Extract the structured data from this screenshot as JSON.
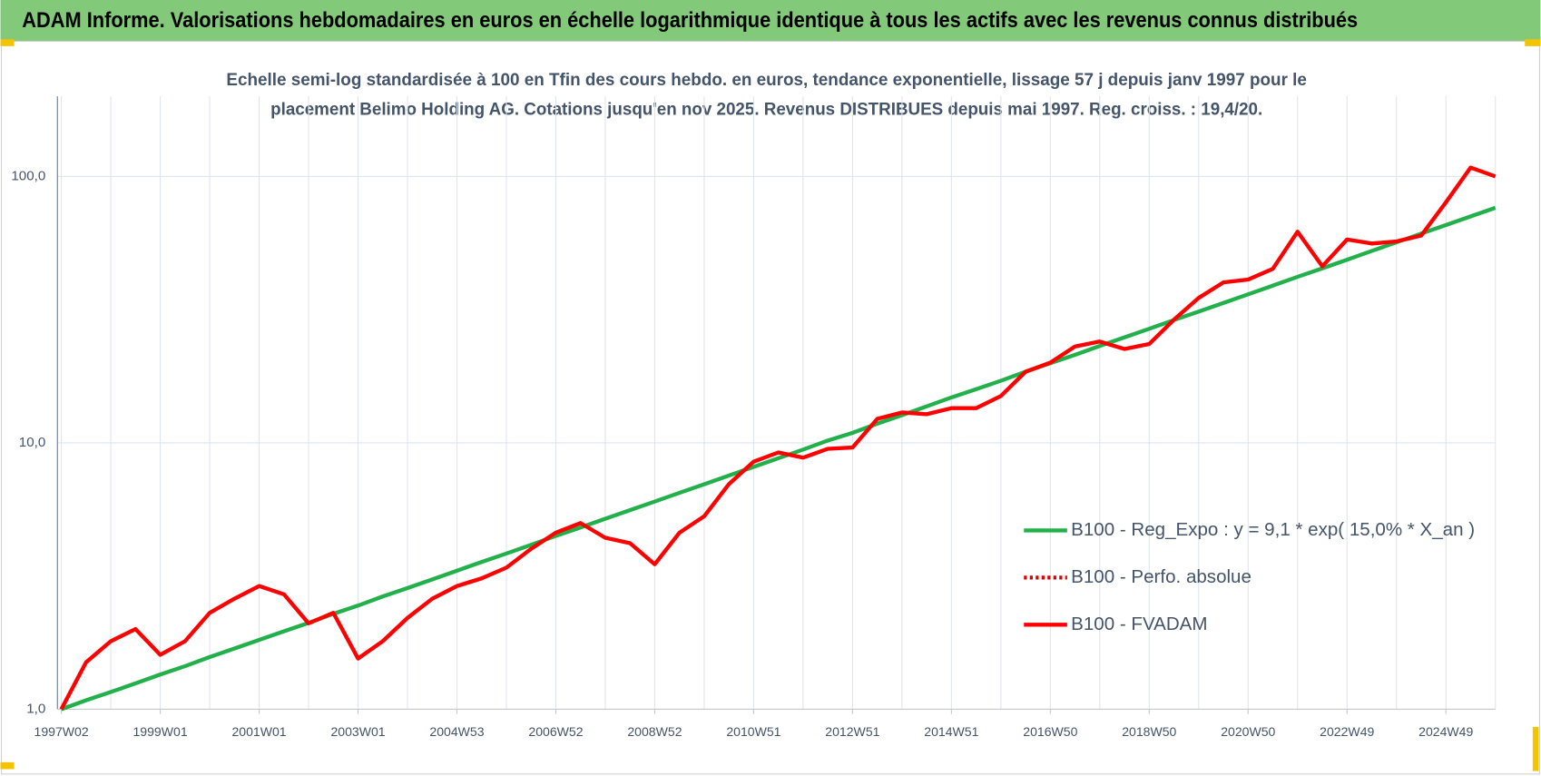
{
  "chart_data": {
    "type": "line",
    "title": "ADAM Informe. Valorisations hebdomadaires en euros en échelle logarithmique identique à tous les actifs avec les revenus connus distribués",
    "subtitle": [
      "Echelle semi-log standardisée à 100 en Tfin des cours hebdo. en euros, tendance exponentielle, lissage 57 j depuis janv 1997 pour le",
      "placement Belimo Holding AG. Cotations jusqu'en nov 2025.  Revenus DISTRIBUES depuis mai 1997. Reg. croiss. : 19,4/20."
    ],
    "categories": [
      "1997W02",
      null,
      null,
      null,
      "1999W01",
      null,
      null,
      null,
      "2001W01",
      null,
      null,
      null,
      "2003W01",
      null,
      null,
      null,
      "2004W53",
      null,
      null,
      null,
      "2006W52",
      null,
      null,
      null,
      "2008W52",
      null,
      null,
      null,
      "2010W51",
      null,
      null,
      null,
      "2012W51",
      null,
      null,
      null,
      "2014W51",
      null,
      null,
      null,
      "2016W50",
      null,
      null,
      null,
      "2018W50",
      null,
      null,
      null,
      "2020W50",
      null,
      null,
      null,
      "2022W49",
      null,
      null,
      null,
      "2024W49",
      null,
      null
    ],
    "log_scale": true,
    "ylim": [
      1,
      200
    ],
    "yticks": [
      {
        "value": 1,
        "label": "1,0"
      },
      {
        "value": 10,
        "label": "10,0"
      },
      {
        "value": 100,
        "label": "100,0"
      }
    ],
    "grid": true,
    "legend": "right",
    "series": [
      {
        "name": "B100 - Reg_Expo : y = 9,1 * exp( 15,0% *  X_an )",
        "color": "#22b04b",
        "style": "solid",
        "values": [
          1.0,
          1.08,
          1.16,
          1.25,
          1.35,
          1.45,
          1.57,
          1.69,
          1.82,
          1.96,
          2.11,
          2.28,
          2.45,
          2.65,
          2.85,
          3.07,
          3.31,
          3.57,
          3.84,
          4.14,
          4.47,
          4.81,
          5.19,
          5.59,
          6.02,
          6.49,
          6.99,
          7.54,
          8.12,
          8.75,
          9.43,
          10.2,
          10.9,
          11.8,
          12.7,
          13.7,
          14.8,
          15.9,
          17.1,
          18.5,
          19.9,
          21.4,
          23.1,
          24.9,
          26.8,
          28.9,
          31.1,
          33.5,
          36.1,
          38.9,
          42.0,
          45.2,
          48.7,
          52.5,
          56.6,
          61.0,
          65.7,
          70.8,
          76.3
        ]
      },
      {
        "name": "B100 - Perfo. absolue",
        "color": "#e00000",
        "style": "dotted",
        "values": [
          1.0,
          1.5,
          1.8,
          2.0,
          1.6,
          1.8,
          2.3,
          2.6,
          2.9,
          2.7,
          2.1,
          2.3,
          1.55,
          1.8,
          2.2,
          2.6,
          2.9,
          3.1,
          3.4,
          4.0,
          4.6,
          5.0,
          4.4,
          4.2,
          3.5,
          4.6,
          5.3,
          7.0,
          8.5,
          9.2,
          8.8,
          9.5,
          9.6,
          12.3,
          13.0,
          12.8,
          13.5,
          13.5,
          15,
          18.5,
          20,
          23,
          24,
          22.5,
          23.5,
          29,
          35,
          40,
          41,
          45,
          62,
          46,
          58,
          56,
          57,
          60,
          80,
          108,
          100
        ]
      },
      {
        "name": "B100 - FVADAM",
        "color": "#ff0000",
        "style": "solid",
        "values": [
          1.0,
          1.5,
          1.8,
          2.0,
          1.6,
          1.8,
          2.3,
          2.6,
          2.9,
          2.7,
          2.1,
          2.3,
          1.55,
          1.8,
          2.2,
          2.6,
          2.9,
          3.1,
          3.4,
          4.0,
          4.6,
          5.0,
          4.4,
          4.2,
          3.5,
          4.6,
          5.3,
          7.0,
          8.5,
          9.2,
          8.8,
          9.5,
          9.6,
          12.3,
          13.0,
          12.8,
          13.5,
          13.5,
          15,
          18.5,
          20,
          23,
          24,
          22.5,
          23.5,
          29,
          35,
          40,
          41,
          45,
          62,
          46,
          58,
          56,
          57,
          60,
          80,
          108,
          100
        ]
      }
    ]
  }
}
